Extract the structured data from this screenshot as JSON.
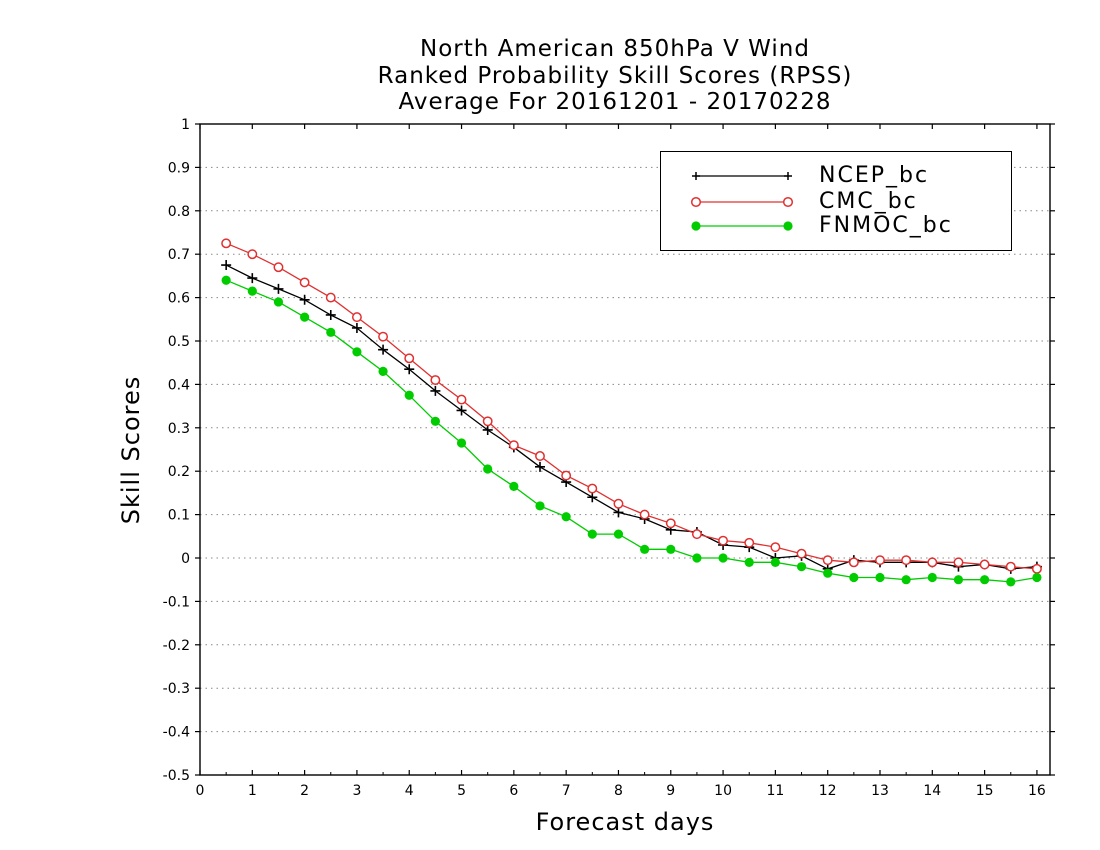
{
  "chart_data": {
    "type": "line",
    "title_lines": [
      "North American 850hPa V Wind",
      "Ranked Probability Skill Scores (RPSS)",
      "Average For 20161201 - 20170228"
    ],
    "xlabel": "Forecast days",
    "ylabel": "Skill Scores",
    "xlim": [
      0,
      16.25
    ],
    "ylim": [
      -0.5,
      1
    ],
    "x_ticks": [
      "0",
      "1",
      "2",
      "3",
      "4",
      "5",
      "6",
      "7",
      "8",
      "9",
      "10",
      "11",
      "12",
      "13",
      "14",
      "15",
      "16"
    ],
    "y_ticks": [
      "1",
      "0.9",
      "0.8",
      "0.7",
      "0.6",
      "0.5",
      "0.4",
      "0.3",
      "0.2",
      "0.1",
      "0",
      "-0.1",
      "-0.2",
      "-0.3",
      "-0.4",
      "-0.5"
    ],
    "grid": "horizontal dotted",
    "legend_position": "top-right",
    "x": [
      0.5,
      1,
      1.5,
      2,
      2.5,
      3,
      3.5,
      4,
      4.5,
      5,
      5.5,
      6,
      6.5,
      7,
      7.5,
      8,
      8.5,
      9,
      9.5,
      10,
      10.5,
      11,
      11.5,
      12,
      12.5,
      13,
      13.5,
      14,
      14.5,
      15,
      15.5,
      16
    ],
    "series": [
      {
        "name": "NCEP_bc",
        "color": "#000000",
        "marker": "plus",
        "values": [
          0.675,
          0.645,
          0.62,
          0.595,
          0.56,
          0.53,
          0.48,
          0.435,
          0.385,
          0.34,
          0.295,
          0.255,
          0.21,
          0.175,
          0.14,
          0.105,
          0.09,
          0.065,
          0.06,
          0.03,
          0.025,
          0.0,
          0.005,
          -0.025,
          -0.005,
          -0.01,
          -0.01,
          -0.01,
          -0.02,
          -0.015,
          -0.025,
          -0.02
        ]
      },
      {
        "name": "CMC_bc",
        "color": "#e03030",
        "marker": "open-circle",
        "values": [
          0.725,
          0.7,
          0.67,
          0.635,
          0.6,
          0.555,
          0.51,
          0.46,
          0.41,
          0.365,
          0.315,
          0.26,
          0.235,
          0.19,
          0.16,
          0.125,
          0.1,
          0.08,
          0.055,
          0.04,
          0.035,
          0.025,
          0.01,
          -0.005,
          -0.01,
          -0.005,
          -0.005,
          -0.01,
          -0.01,
          -0.015,
          -0.02,
          -0.025
        ]
      },
      {
        "name": "FNMOC_bc",
        "color": "#00cc00",
        "marker": "filled-circle",
        "values": [
          0.64,
          0.615,
          0.59,
          0.555,
          0.52,
          0.475,
          0.43,
          0.375,
          0.315,
          0.265,
          0.205,
          0.165,
          0.12,
          0.095,
          0.055,
          0.055,
          0.02,
          0.02,
          0.0,
          0.0,
          -0.01,
          -0.01,
          -0.02,
          -0.035,
          -0.045,
          -0.045,
          -0.05,
          -0.045,
          -0.05,
          -0.05,
          -0.055,
          -0.045
        ]
      }
    ]
  }
}
